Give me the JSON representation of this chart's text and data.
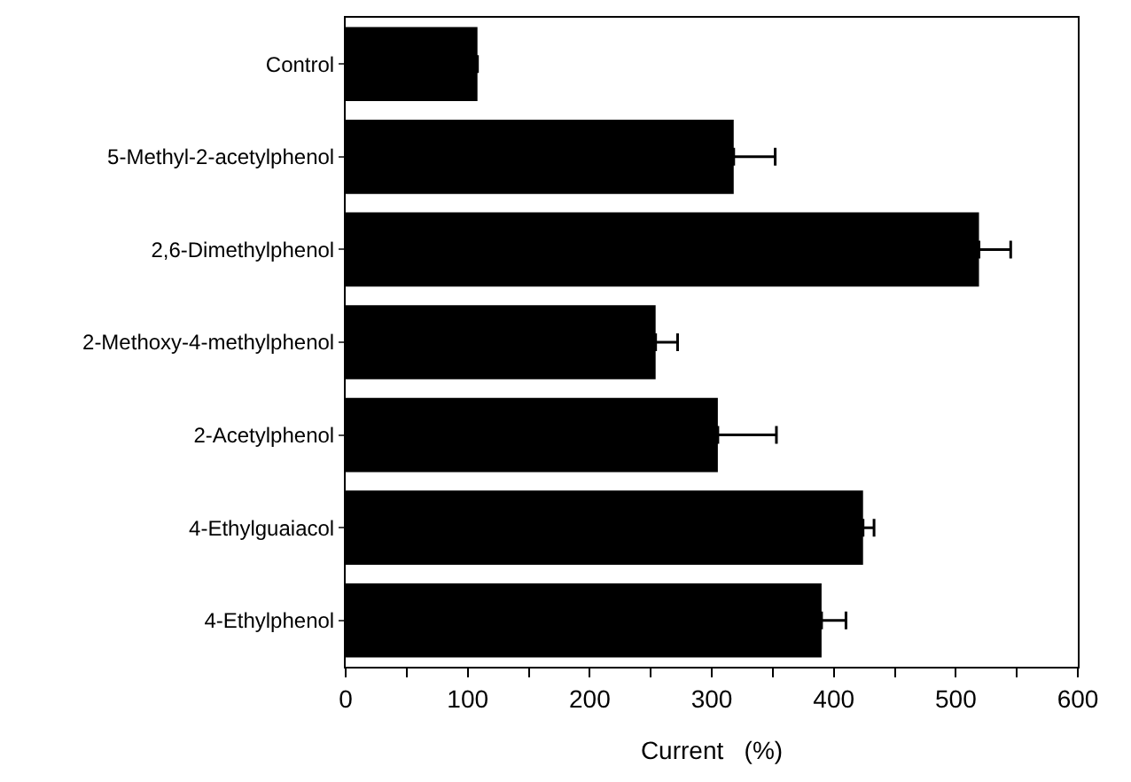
{
  "chart_data": {
    "type": "bar",
    "orientation": "horizontal",
    "xlabel": "Current   (%)",
    "categories": [
      "Control",
      "5-Methyl-2-acetylphenol",
      "2,6-Dimethylphenol",
      "2-Methoxy-4-methylphenol",
      "2-Acetylphenol",
      "4-Ethylguaiacol",
      "4-Ethylphenol"
    ],
    "values": [
      108,
      318,
      519,
      254,
      305,
      424,
      390
    ],
    "errors": [
      null,
      [
        318,
        352
      ],
      [
        519,
        545
      ],
      [
        254,
        272
      ],
      [
        305,
        353
      ],
      [
        424,
        433
      ],
      [
        390,
        410
      ]
    ],
    "color": "#000000",
    "xlim": [
      0,
      600
    ],
    "xticks": [
      0,
      {
        "value": 50,
        "label": null
      },
      100,
      {
        "value": 150,
        "label": null
      },
      200,
      {
        "value": 250,
        "label": null
      },
      300,
      {
        "value": 350,
        "label": null
      },
      400,
      {
        "value": 450,
        "label": null
      },
      500,
      {
        "value": 550,
        "label": null
      },
      600
    ],
    "grid": false
  }
}
